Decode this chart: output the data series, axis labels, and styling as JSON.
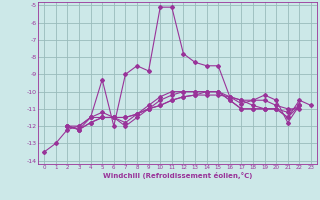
{
  "xlabel": "Windchill (Refroidissement éolien,°C)",
  "ylabel": "",
  "xlim": [
    -0.5,
    23.5
  ],
  "ylim": [
    -14.2,
    -4.8
  ],
  "xticks": [
    0,
    1,
    2,
    3,
    4,
    5,
    6,
    7,
    8,
    9,
    10,
    11,
    12,
    13,
    14,
    15,
    16,
    17,
    18,
    19,
    20,
    21,
    22,
    23
  ],
  "yticks": [
    -14,
    -13,
    -12,
    -11,
    -10,
    -9,
    -8,
    -7,
    -6,
    -5
  ],
  "background_color": "#cce8e8",
  "line_color": "#993399",
  "grid_color": "#99bbbb",
  "series": [
    [
      null,
      null,
      -12.0,
      -12.0,
      -11.5,
      -9.3,
      -12.0,
      -9.0,
      -8.5,
      -8.8,
      -5.1,
      -5.1,
      -7.8,
      -8.3,
      -8.5,
      -8.5,
      -10.3,
      -10.7,
      -10.5,
      -10.2,
      -10.5,
      -11.8,
      -10.8,
      null
    ],
    [
      null,
      null,
      -12.0,
      -12.2,
      -11.5,
      -11.5,
      -11.5,
      -11.5,
      -11.3,
      -11.0,
      -10.8,
      -10.5,
      -10.3,
      -10.2,
      -10.2,
      -10.2,
      -10.3,
      -10.5,
      -10.5,
      -10.5,
      -10.8,
      -11.0,
      -11.0,
      null
    ],
    [
      null,
      null,
      -12.0,
      -12.2,
      -11.8,
      -11.5,
      -11.5,
      -11.5,
      -11.3,
      -11.0,
      -10.8,
      -10.5,
      -10.3,
      -10.2,
      -10.0,
      -10.0,
      -10.3,
      -10.5,
      -10.8,
      -11.0,
      -11.0,
      -11.2,
      -10.8,
      null
    ],
    [
      null,
      null,
      -12.0,
      -12.2,
      -11.8,
      -11.5,
      -11.5,
      -12.0,
      -11.5,
      -11.0,
      -10.5,
      -10.2,
      -10.0,
      -10.0,
      -10.0,
      -10.0,
      -10.5,
      -11.0,
      -11.0,
      -11.0,
      -11.0,
      -11.5,
      -10.8,
      null
    ],
    [
      -13.5,
      -13.0,
      -12.2,
      -12.0,
      -11.5,
      -11.2,
      -11.5,
      -11.8,
      -11.3,
      -10.8,
      -10.3,
      -10.0,
      -10.0,
      -10.0,
      -10.0,
      -10.0,
      -10.5,
      -11.0,
      -11.0,
      -11.0,
      -11.0,
      -11.5,
      -10.5,
      -10.8
    ]
  ]
}
